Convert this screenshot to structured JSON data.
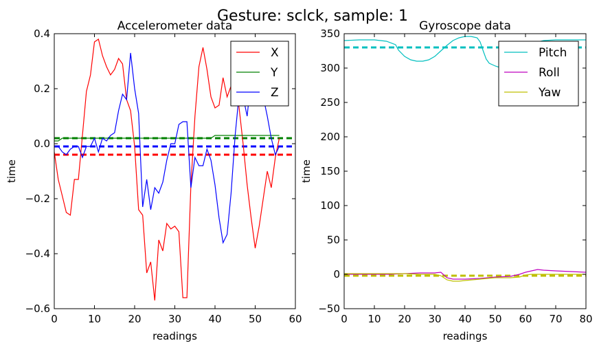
{
  "suptitle": "Gesture: sclck, sample: 1",
  "chart_data": [
    {
      "type": "line",
      "title": "Accelerometer data",
      "xlabel": "readings",
      "ylabel": "time",
      "xlim": [
        0,
        60
      ],
      "ylim": [
        -0.6,
        0.4
      ],
      "xticks": [
        0,
        10,
        20,
        30,
        40,
        50,
        60
      ],
      "yticks": [
        -0.6,
        -0.4,
        -0.2,
        0.0,
        0.2,
        0.4
      ],
      "xtick_labels": [
        "0",
        "10",
        "20",
        "30",
        "40",
        "50",
        "60"
      ],
      "ytick_labels": [
        "−0.6",
        "−0.4",
        "−0.2",
        "0.0",
        "0.2",
        "0.4"
      ],
      "legend_position": "top-right",
      "series": [
        {
          "name": "X",
          "color": "#ff0000",
          "values": [
            -0.03,
            -0.13,
            -0.19,
            -0.25,
            -0.26,
            -0.13,
            -0.13,
            0.03,
            0.19,
            0.25,
            0.37,
            0.38,
            0.32,
            0.28,
            0.25,
            0.27,
            0.31,
            0.29,
            0.16,
            0.12,
            -0.01,
            -0.24,
            -0.26,
            -0.47,
            -0.43,
            -0.57,
            -0.35,
            -0.39,
            -0.29,
            -0.31,
            -0.3,
            -0.32,
            -0.56,
            -0.56,
            -0.15,
            0.1,
            0.28,
            0.35,
            0.27,
            0.17,
            0.13,
            0.14,
            0.24,
            0.17,
            0.21,
            0.27,
            0.13,
            0.0,
            -0.15,
            -0.27,
            -0.38,
            -0.3,
            -0.2,
            -0.1,
            -0.16,
            -0.05,
            0.02
          ]
        },
        {
          "name": "Y",
          "color": "#008000",
          "values": [
            0.01,
            0.01,
            0.02,
            0.02,
            0.02,
            0.02,
            0.02,
            0.02,
            0.02,
            0.02,
            0.02,
            0.02,
            0.02,
            0.02,
            0.02,
            0.02,
            0.02,
            0.02,
            0.02,
            0.02,
            0.02,
            0.02,
            0.02,
            0.02,
            0.02,
            0.02,
            0.02,
            0.02,
            0.02,
            0.02,
            0.02,
            0.02,
            0.02,
            0.02,
            0.02,
            0.02,
            0.02,
            0.02,
            0.02,
            0.02,
            0.03,
            0.03,
            0.03,
            0.03,
            0.03,
            0.03,
            0.03,
            0.03,
            0.03,
            0.03,
            0.03,
            0.03,
            0.03,
            0.03,
            0.03,
            0.03,
            0.03
          ]
        },
        {
          "name": "Z",
          "color": "#0000ff",
          "values": [
            -0.01,
            -0.01,
            -0.03,
            -0.04,
            -0.02,
            -0.01,
            -0.01,
            -0.05,
            -0.01,
            -0.01,
            0.02,
            -0.03,
            0.02,
            0.01,
            0.03,
            0.04,
            0.12,
            0.18,
            0.16,
            0.33,
            0.2,
            0.11,
            -0.23,
            -0.13,
            -0.24,
            -0.16,
            -0.18,
            -0.14,
            -0.06,
            0.0,
            0.0,
            0.07,
            0.08,
            0.08,
            -0.16,
            -0.05,
            -0.08,
            -0.08,
            -0.02,
            -0.06,
            -0.15,
            -0.27,
            -0.36,
            -0.33,
            -0.18,
            0.03,
            0.18,
            0.17,
            0.1,
            0.24,
            0.28,
            0.21,
            0.17,
            0.1,
            0.02,
            -0.04,
            -0.01
          ]
        }
      ],
      "mean_lines": [
        {
          "series": "X",
          "color": "#ff0000",
          "value": -0.04
        },
        {
          "series": "Y",
          "color": "#008000",
          "value": 0.02
        },
        {
          "series": "Z",
          "color": "#0000ff",
          "value": -0.01
        }
      ]
    },
    {
      "type": "line",
      "title": "Gyroscope data",
      "xlabel": "readings",
      "ylabel": "time",
      "xlim": [
        0,
        80
      ],
      "ylim": [
        -50,
        350
      ],
      "xticks": [
        0,
        10,
        20,
        30,
        40,
        50,
        60,
        70,
        80
      ],
      "yticks": [
        -50,
        0,
        50,
        100,
        150,
        200,
        250,
        300,
        350
      ],
      "xtick_labels": [
        "0",
        "10",
        "20",
        "30",
        "40",
        "50",
        "60",
        "70",
        "80"
      ],
      "ytick_labels": [
        "−50",
        "0",
        "50",
        "100",
        "150",
        "200",
        "250",
        "300",
        "350"
      ],
      "legend_position": "top-right",
      "series": [
        {
          "name": "Pitch",
          "color": "#00bfbf",
          "x": [
            0,
            5,
            10,
            14,
            17,
            18,
            20,
            22,
            24,
            26,
            28,
            30,
            32,
            34,
            36,
            38,
            40,
            42,
            44,
            45,
            46,
            47,
            48,
            50,
            52,
            54,
            56,
            58,
            60,
            62,
            64,
            66,
            70,
            75,
            80
          ],
          "values": [
            340,
            341,
            341,
            339,
            334,
            326,
            317,
            312,
            310,
            310,
            312,
            317,
            325,
            333,
            340,
            344,
            346,
            346,
            344,
            338,
            325,
            313,
            307,
            303,
            300,
            302,
            306,
            312,
            320,
            330,
            338,
            340,
            341,
            341,
            341
          ]
        },
        {
          "name": "Roll",
          "color": "#bf00bf",
          "x": [
            0,
            5,
            10,
            15,
            20,
            25,
            30,
            32,
            34,
            36,
            38,
            40,
            45,
            50,
            55,
            58,
            60,
            62,
            64,
            66,
            70,
            75,
            80
          ],
          "values": [
            0,
            0,
            0,
            0,
            1,
            2,
            2,
            3,
            -5,
            -7,
            -7,
            -7,
            -6,
            -4,
            -3,
            0,
            3,
            5,
            7,
            6,
            5,
            4,
            3
          ]
        },
        {
          "name": "Yaw",
          "color": "#bfbf00",
          "x": [
            0,
            5,
            10,
            15,
            20,
            25,
            30,
            32,
            34,
            36,
            38,
            40,
            45,
            50,
            55,
            58,
            60,
            62,
            64,
            66,
            70,
            75,
            80
          ],
          "values": [
            1,
            1,
            1,
            1,
            1,
            0,
            0,
            -2,
            -8,
            -10,
            -10,
            -9,
            -7,
            -5,
            -5,
            -4,
            -1,
            0,
            0,
            0,
            0,
            0,
            0
          ]
        }
      ],
      "mean_lines": [
        {
          "series": "Pitch",
          "color": "#00bfbf",
          "value": 330
        },
        {
          "series": "Roll",
          "color": "#bf00bf",
          "value": -2
        },
        {
          "series": "Yaw",
          "color": "#bfbf00",
          "value": -2
        }
      ]
    }
  ]
}
